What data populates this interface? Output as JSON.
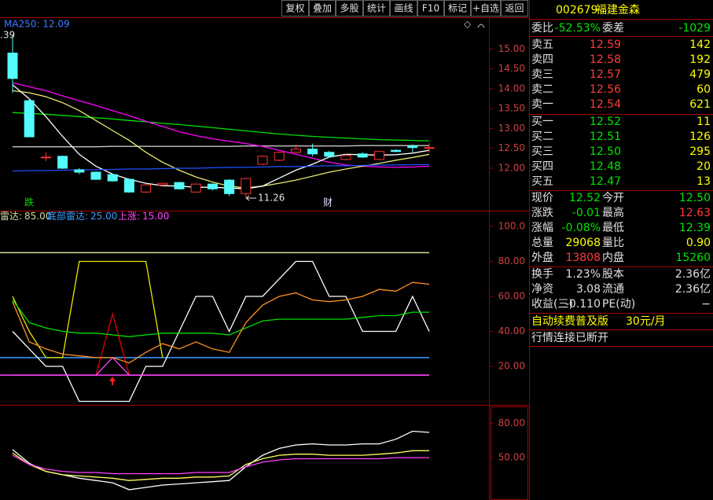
{
  "toolbar": [
    "复权",
    "叠加",
    "多股",
    "统计",
    "画线",
    "F10",
    "标记",
    "+自选",
    "返回"
  ],
  "stock": {
    "code": "002679",
    "name": "福建金森"
  },
  "quote": {
    "ratio": {
      "label": "委比",
      "value": "-52.53%",
      "label2": "委差",
      "value2": "-1029",
      "colors": [
        "#00e600",
        "#00e600"
      ]
    },
    "asks": [
      {
        "label": "卖五",
        "price": "12.59",
        "volume": "142"
      },
      {
        "label": "卖四",
        "price": "12.58",
        "volume": "192"
      },
      {
        "label": "卖三",
        "price": "12.57",
        "volume": "479"
      },
      {
        "label": "卖二",
        "price": "12.56",
        "volume": "60"
      },
      {
        "label": "卖一",
        "price": "12.54",
        "volume": "621"
      }
    ],
    "bids": [
      {
        "label": "买一",
        "price": "12.52",
        "volume": "11"
      },
      {
        "label": "买二",
        "price": "12.51",
        "volume": "126"
      },
      {
        "label": "买三",
        "price": "12.50",
        "volume": "295"
      },
      {
        "label": "买四",
        "price": "12.48",
        "volume": "20"
      },
      {
        "label": "买五",
        "price": "12.47",
        "volume": "13"
      }
    ],
    "stats": [
      {
        "label": "现价",
        "value": "12.52",
        "label2": "今开",
        "value2": "12.50",
        "colors": [
          "#00e600",
          "#00e600"
        ]
      },
      {
        "label": "涨跌",
        "value": "-0.01",
        "label2": "最高",
        "value2": "12.63",
        "colors": [
          "#00e600",
          "#ff3c3c"
        ]
      },
      {
        "label": "涨幅",
        "value": "-0.08%",
        "label2": "最低",
        "value2": "12.39",
        "colors": [
          "#00e600",
          "#00e600"
        ]
      },
      {
        "label": "总量",
        "value": "29068",
        "label2": "量比",
        "value2": "0.90",
        "colors": [
          "#ffff00",
          "#ffff00"
        ]
      },
      {
        "label": "外盘",
        "value": "13808",
        "label2": "内盘",
        "value2": "15260",
        "colors": [
          "#ff3c3c",
          "#00e600"
        ]
      }
    ],
    "finance": [
      {
        "label": "换手",
        "value": "1.23%",
        "label2": "股本",
        "value2": "2.36亿",
        "colors": [
          "#e0e0e0",
          "#e0e0e0"
        ]
      },
      {
        "label": "净资",
        "value": "3.08",
        "label2": "流通",
        "value2": "2.36亿",
        "colors": [
          "#e0e0e0",
          "#e0e0e0"
        ]
      },
      {
        "label": "收益(三)",
        "value": "-0.110",
        "label2": "PE(动)",
        "value2": "−",
        "colors": [
          "#e0e0e0",
          "#e0e0e0"
        ]
      }
    ],
    "promo": {
      "text": "自动续费普及版",
      "price": "30元/月"
    },
    "status": "行情连接已断开"
  },
  "chart_data": [
    {
      "type": "candlestick",
      "indicator_label": "MA250: 12.09",
      "high_label": ".39",
      "low_label": "11.26",
      "markers": [
        "跌",
        "财"
      ],
      "ylim": [
        10.93,
        15.8
      ],
      "yticks": [
        {
          "value": 12,
          "label": "12.00"
        },
        {
          "value": 12.5,
          "label": "12.50"
        },
        {
          "value": 13,
          "label": "13.00"
        },
        {
          "value": 13.5,
          "label": "13.50"
        },
        {
          "value": 14,
          "label": "14.00"
        },
        {
          "value": 14.5,
          "label": "14.50"
        },
        {
          "value": 15,
          "label": "15.00"
        }
      ],
      "up_color": "#ff3232",
      "down_color": "#54fcfc",
      "open": [
        14.9,
        13.7,
        12.28,
        12.3,
        11.96,
        11.9,
        11.84,
        11.72,
        11.4,
        11.58,
        11.64,
        11.4,
        11.6,
        11.7,
        11.36,
        12.1,
        12.2,
        12.4,
        12.48,
        12.4,
        12.22,
        12.36,
        12.22,
        12.45,
        12.56,
        12.5
      ],
      "high": [
        15.35,
        13.75,
        12.4,
        12.32,
        12.0,
        11.92,
        11.86,
        11.74,
        11.6,
        11.64,
        11.66,
        11.62,
        11.62,
        11.72,
        11.76,
        12.32,
        12.42,
        12.6,
        12.62,
        12.44,
        12.36,
        12.4,
        12.44,
        12.48,
        12.6,
        12.63
      ],
      "low": [
        13.9,
        12.78,
        12.18,
        11.98,
        11.85,
        11.7,
        11.66,
        11.38,
        11.38,
        11.56,
        11.46,
        11.38,
        11.44,
        11.3,
        11.26,
        12.08,
        12.18,
        12.38,
        12.3,
        12.28,
        12.2,
        12.26,
        12.2,
        12.4,
        12.4,
        12.39
      ],
      "close": [
        14.26,
        12.79,
        12.28,
        12.0,
        11.9,
        11.72,
        11.68,
        11.4,
        11.58,
        11.62,
        11.48,
        11.6,
        11.48,
        11.36,
        11.74,
        12.3,
        12.4,
        12.48,
        12.36,
        12.3,
        12.32,
        12.28,
        12.42,
        12.42,
        12.52,
        12.52
      ],
      "series": [
        {
          "color": "#c8c8c8",
          "values": [
            12.54,
            12.54,
            12.54,
            12.54,
            12.54,
            12.54,
            12.55,
            12.55,
            12.55,
            12.55,
            12.55,
            12.55,
            12.55,
            12.55,
            12.56,
            12.56,
            12.56,
            12.56,
            12.56,
            12.56,
            12.56,
            12.57,
            12.57,
            12.57,
            12.57,
            12.57
          ]
        },
        {
          "color": "#00e000",
          "values": [
            13.4,
            13.38,
            13.36,
            13.33,
            13.3,
            13.27,
            13.24,
            13.2,
            13.17,
            13.13,
            13.1,
            13.06,
            13.02,
            12.98,
            12.94,
            12.9,
            12.86,
            12.83,
            12.8,
            12.78,
            12.76,
            12.74,
            12.72,
            12.71,
            12.7,
            12.69
          ]
        },
        {
          "color": "#ff00ff",
          "values": [
            14.15,
            14.05,
            13.95,
            13.82,
            13.7,
            13.58,
            13.45,
            13.32,
            13.18,
            13.05,
            12.92,
            12.82,
            12.74,
            12.68,
            12.62,
            12.55,
            12.45,
            12.35,
            12.25,
            12.15,
            12.08,
            12.05,
            12.03,
            12.02,
            12.03,
            12.05
          ]
        },
        {
          "color": "#e8e870",
          "values": [
            13.95,
            13.9,
            13.8,
            13.65,
            13.45,
            13.2,
            12.95,
            12.7,
            12.4,
            12.15,
            11.95,
            11.78,
            11.65,
            11.55,
            11.5,
            11.55,
            11.62,
            11.7,
            11.8,
            11.9,
            11.98,
            12.05,
            12.12,
            12.2,
            12.27,
            12.35
          ]
        },
        {
          "color": "#ffffff",
          "values": [
            14.1,
            13.75,
            13.3,
            12.8,
            12.35,
            12.05,
            11.85,
            11.72,
            11.62,
            11.56,
            11.55,
            11.52,
            11.52,
            11.5,
            11.48,
            11.55,
            11.75,
            11.95,
            12.1,
            12.28,
            12.35,
            12.34,
            12.33,
            12.34,
            12.38,
            12.45
          ]
        },
        {
          "color": "#2050ff",
          "values": [
            11.93,
            11.94,
            11.94,
            11.95,
            11.96,
            11.96,
            11.97,
            11.98,
            11.98,
            11.99,
            12.0,
            12.0,
            12.01,
            12.02,
            12.02,
            12.03,
            12.04,
            12.04,
            12.05,
            12.06,
            12.06,
            12.07,
            12.08,
            12.08,
            12.09,
            12.09
          ]
        }
      ]
    },
    {
      "type": "line",
      "ylim": [
        -2,
        109
      ],
      "yticks": [
        {
          "value": 20,
          "label": "20.00"
        },
        {
          "value": 40,
          "label": "40.00"
        },
        {
          "value": 60,
          "label": "60.00"
        },
        {
          "value": 80,
          "label": "80.00"
        },
        {
          "value": 100,
          "label": "100.0"
        }
      ],
      "levels": [
        {
          "name": "雷达:",
          "value": 85,
          "label": "85.00",
          "color": "#d8d8a0"
        },
        {
          "name": "底部雷达:",
          "value": 25,
          "label": "25.00",
          "color": "#3c9cff"
        },
        {
          "name": "上涨:",
          "value": 15,
          "label": "15.00",
          "color": "#ff44ff"
        }
      ],
      "series": [
        {
          "color": "#ffffff",
          "values": [
            40,
            30,
            20,
            20,
            0,
            0,
            0,
            0,
            20,
            20,
            40,
            60,
            60,
            40,
            60,
            60,
            70,
            80,
            80,
            60,
            60,
            40,
            40,
            40,
            60,
            40
          ]
        },
        {
          "color": "#e8e800",
          "values": [
            60,
            40,
            25,
            25,
            80,
            80,
            80,
            80,
            80,
            25,
            null,
            null,
            null,
            null,
            null,
            null,
            null,
            null,
            null,
            null,
            null,
            null,
            null,
            null,
            null,
            null
          ]
        },
        {
          "color": "#e00000",
          "values": [
            null,
            null,
            null,
            null,
            null,
            15,
            50,
            15,
            null,
            null,
            null,
            null,
            null,
            null,
            null,
            null,
            null,
            null,
            null,
            null,
            null,
            null,
            null,
            null,
            null,
            null
          ]
        },
        {
          "color": "#ff44ff",
          "values": [
            15,
            15,
            15,
            15,
            15,
            15,
            25,
            15,
            15,
            15,
            15,
            15,
            15,
            15,
            15,
            15,
            15,
            15,
            15,
            15,
            15,
            15,
            15,
            15,
            15,
            15
          ]
        },
        {
          "color": "#00e000",
          "values": [
            58,
            45,
            42,
            40,
            39,
            39,
            38,
            37,
            38,
            39,
            39,
            39,
            39,
            38,
            42,
            46,
            47,
            47,
            47,
            47,
            47,
            48,
            49,
            49,
            51,
            51
          ]
        },
        {
          "color": "#ff9020",
          "values": [
            57,
            34,
            30,
            27,
            26,
            25,
            25,
            22,
            28,
            33,
            30,
            34,
            30,
            28,
            45,
            55,
            60,
            62,
            58,
            57,
            58,
            60,
            64,
            63,
            68,
            67
          ]
        }
      ]
    },
    {
      "type": "line",
      "ylim": [
        13,
        96
      ],
      "yticks": [
        {
          "value": 50,
          "label": "50.00"
        },
        {
          "value": 80,
          "label": "80.00"
        }
      ],
      "series": [
        {
          "color": "#ffffff",
          "values": [
            57,
            45,
            38,
            35,
            32,
            30,
            28,
            22,
            24,
            26,
            27,
            28,
            29,
            30,
            42,
            52,
            58,
            61,
            62,
            61,
            61,
            62,
            62,
            66,
            73,
            72
          ]
        },
        {
          "color": "#ffff60",
          "values": [
            54,
            44,
            38,
            35,
            34,
            33,
            32,
            30,
            31,
            32,
            32,
            33,
            33,
            34,
            44,
            49,
            52,
            53,
            53,
            52,
            52,
            52,
            53,
            54,
            56,
            56
          ]
        },
        {
          "color": "#ff44ff",
          "values": [
            52,
            44,
            40,
            38,
            37,
            37,
            36,
            36,
            36,
            36,
            36,
            37,
            37,
            37,
            42,
            46,
            48,
            49,
            49,
            49,
            49,
            49,
            49,
            50,
            50,
            50
          ]
        }
      ]
    }
  ]
}
